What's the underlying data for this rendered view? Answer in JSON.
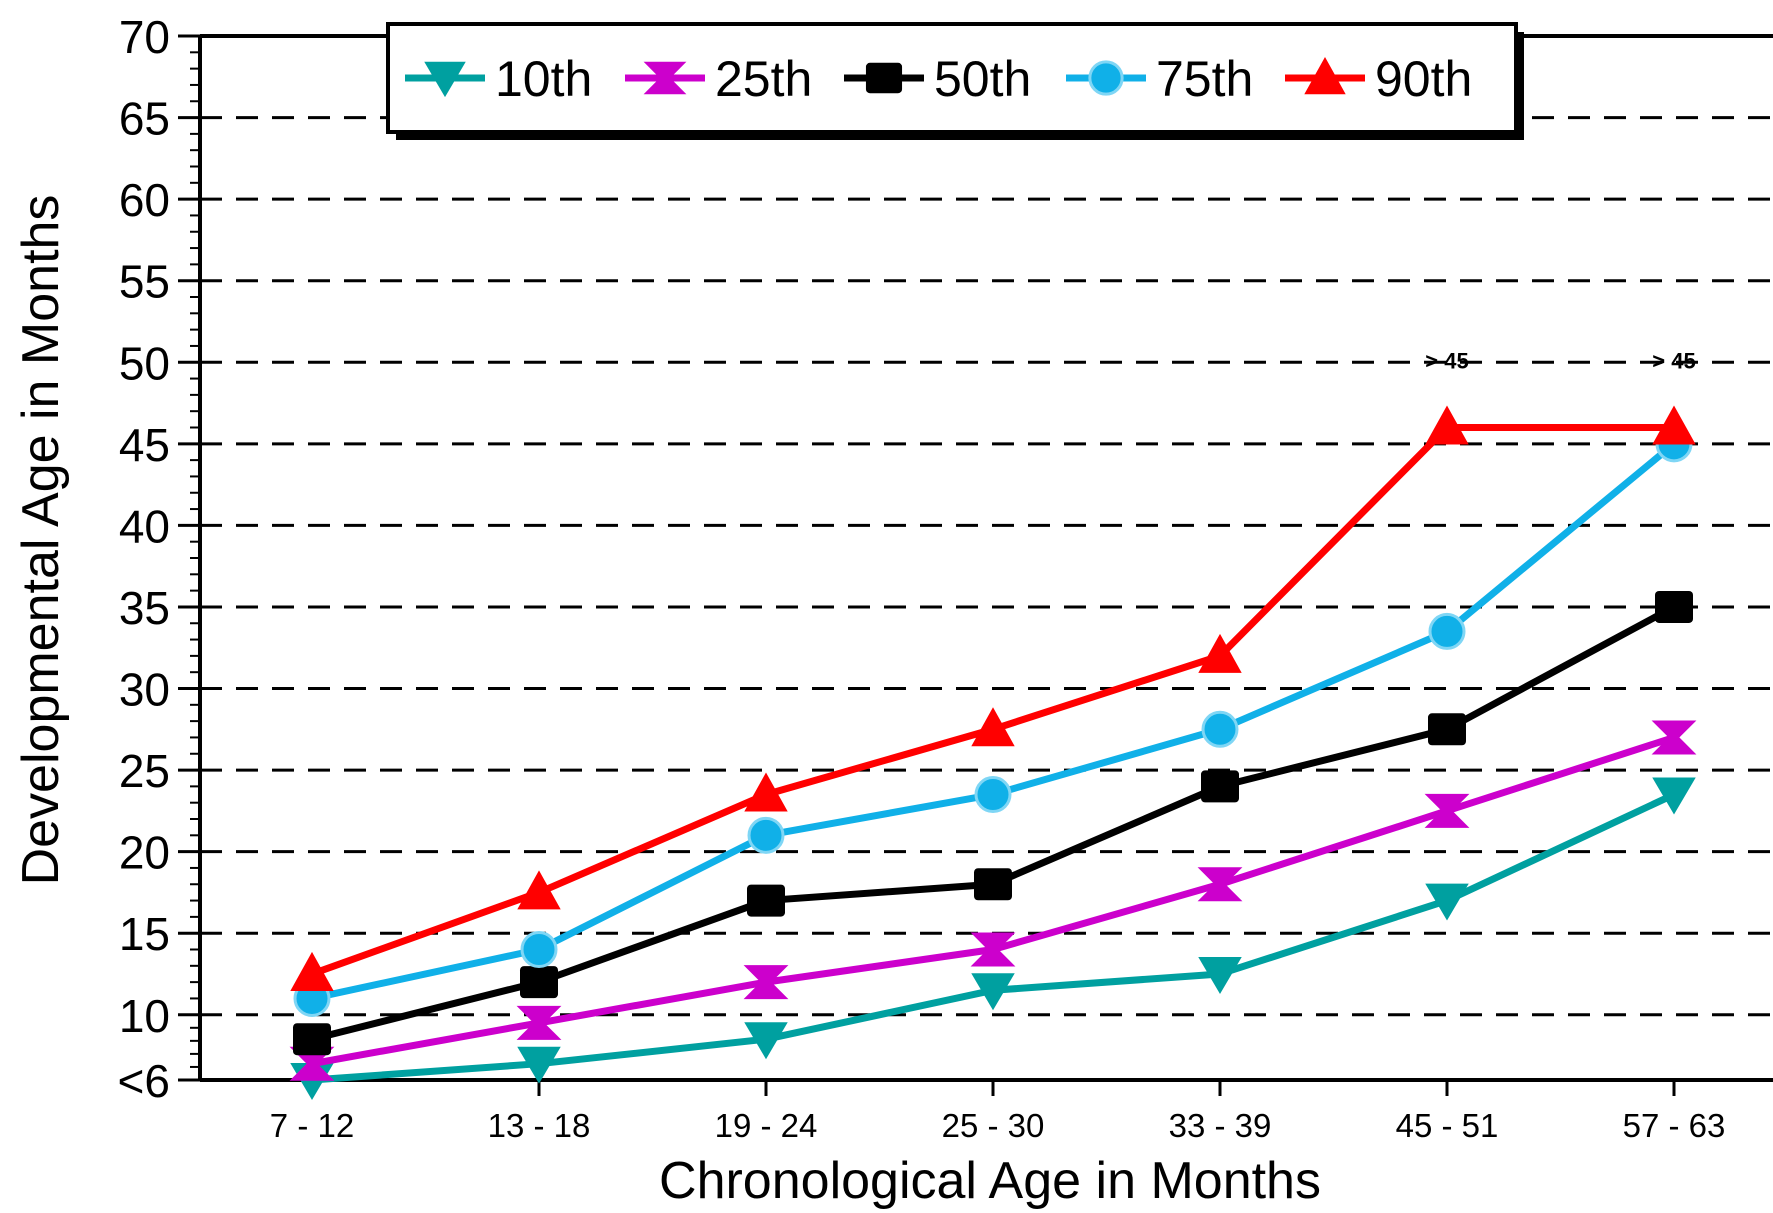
{
  "chart_data": {
    "type": "line",
    "categories": [
      "7 - 12",
      "13 - 18",
      "19 - 24",
      "25 - 30",
      "33 - 39",
      "45 - 51",
      "57 - 63"
    ],
    "xlabel": "Chronological Age in Months",
    "ylabel": "Developmental Age in Months",
    "ylim": [
      6,
      70
    ],
    "yticks": [
      {
        "value": 6,
        "label": "<6"
      },
      {
        "value": 10,
        "label": "10"
      },
      {
        "value": 15,
        "label": "15"
      },
      {
        "value": 20,
        "label": "20"
      },
      {
        "value": 25,
        "label": "25"
      },
      {
        "value": 30,
        "label": "30"
      },
      {
        "value": 35,
        "label": "35"
      },
      {
        "value": 40,
        "label": "40"
      },
      {
        "value": 45,
        "label": "45"
      },
      {
        "value": 50,
        "label": "50"
      },
      {
        "value": 55,
        "label": "55"
      },
      {
        "value": 60,
        "label": "60"
      },
      {
        "value": 65,
        "label": "65"
      },
      {
        "value": 70,
        "label": "70"
      }
    ],
    "grid": "dashed horizontal",
    "legend_position": "top",
    "series": [
      {
        "name": "10th",
        "color": "#00a0a0",
        "marker": "triangle-down",
        "values": [
          6,
          7,
          8.5,
          11.5,
          12.5,
          17,
          23.5
        ]
      },
      {
        "name": "25th",
        "color": "#cc00cc",
        "marker": "hourglass",
        "values": [
          7,
          9.5,
          12,
          14,
          18,
          22.5,
          27
        ]
      },
      {
        "name": "50th",
        "color": "#000000",
        "marker": "square",
        "values": [
          8.5,
          12,
          17,
          18,
          24,
          27.5,
          35
        ]
      },
      {
        "name": "75th",
        "color": "#10b0e8",
        "marker": "circle",
        "values": [
          11,
          14,
          21,
          23.5,
          27.5,
          33.5,
          45
        ]
      },
      {
        "name": "90th",
        "color": "#ff0000",
        "marker": "triangle-up",
        "values": [
          12.5,
          17.5,
          23.5,
          27.5,
          32,
          46,
          46
        ]
      }
    ],
    "annotations": [
      {
        "category": "45 - 51",
        "text": "> 45"
      },
      {
        "category": "57 - 63",
        "text": "> 45"
      }
    ]
  }
}
